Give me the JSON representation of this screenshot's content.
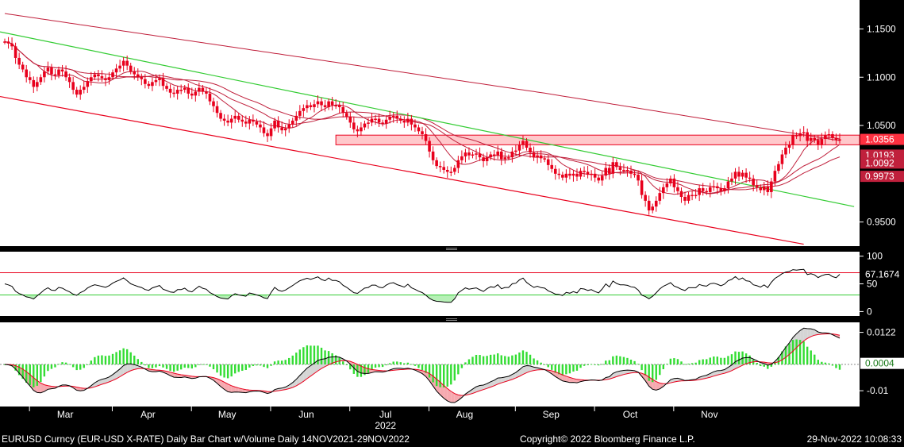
{
  "chart_data": {
    "type": "candlestick",
    "symbol": "EURUSD Curncy (EUR-USD X-RATE)",
    "interval": "Daily",
    "colors": {
      "background": "#000000",
      "frame_bg": "#ffffff",
      "candle": "#e8001c",
      "trendline": "#33cc33",
      "channel": "#e8001c",
      "moving_averages": "#c0203c",
      "band": "#ff9aa0",
      "rsi_line": "#000000",
      "macd_line": "#000000",
      "signal_line": "#e8001c",
      "hist": "#33dd33",
      "axis_text": "#ffffff"
    },
    "price_panel": {
      "ylim": [
        0.925,
        1.18
      ],
      "ticks": [
        "1.1500",
        "1.1000",
        "1.0500",
        "0.9500"
      ],
      "tick_values": [
        1.15,
        1.1,
        1.05,
        0.95
      ],
      "last_price": "1.0356",
      "tags": [
        {
          "label": "1.0356",
          "value": 1.0356,
          "style": "last"
        },
        {
          "label": "1.0193",
          "value": 1.0193,
          "style": "ma"
        },
        {
          "label": "1.0092",
          "value": 1.0092,
          "style": "ma"
        },
        {
          "label": "0.9973",
          "value": 0.9973,
          "style": "ma"
        }
      ],
      "resistance_band": [
        1.03,
        1.04
      ],
      "closes": [
        1.137,
        1.135,
        1.132,
        1.12,
        1.113,
        1.108,
        1.1,
        1.097,
        1.09,
        1.095,
        1.1,
        1.106,
        1.11,
        1.103,
        1.102,
        1.108,
        1.106,
        1.1,
        1.095,
        1.087,
        1.082,
        1.087,
        1.09,
        1.096,
        1.1,
        1.103,
        1.101,
        1.099,
        1.097,
        1.1,
        1.105,
        1.109,
        1.112,
        1.117,
        1.112,
        1.106,
        1.103,
        1.1,
        1.098,
        1.093,
        1.091,
        1.095,
        1.097,
        1.099,
        1.091,
        1.088,
        1.084,
        1.083,
        1.087,
        1.087,
        1.089,
        1.083,
        1.081,
        1.085,
        1.089,
        1.085,
        1.083,
        1.075,
        1.07,
        1.063,
        1.057,
        1.055,
        1.053,
        1.057,
        1.06,
        1.056,
        1.054,
        1.052,
        1.056,
        1.054,
        1.051,
        1.048,
        1.042,
        1.039,
        1.047,
        1.055,
        1.048,
        1.045,
        1.047,
        1.051,
        1.055,
        1.06,
        1.065,
        1.068,
        1.071,
        1.069,
        1.072,
        1.075,
        1.071,
        1.069,
        1.075,
        1.071,
        1.071,
        1.069,
        1.063,
        1.059,
        1.053,
        1.046,
        1.044,
        1.048,
        1.052,
        1.053,
        1.057,
        1.057,
        1.053,
        1.052,
        1.056,
        1.059,
        1.06,
        1.057,
        1.055,
        1.053,
        1.057,
        1.051,
        1.048,
        1.044,
        1.041,
        1.034,
        1.023,
        1.014,
        1.008,
        1.007,
        1.004,
        1.002,
        1.002,
        1.006,
        1.014,
        1.018,
        1.022,
        1.019,
        1.02,
        1.021,
        1.017,
        1.013,
        1.017,
        1.02,
        1.019,
        1.023,
        1.015,
        1.017,
        1.017,
        1.023,
        1.024,
        1.03,
        1.034,
        1.027,
        1.022,
        1.017,
        1.019,
        1.016,
        1.015,
        1.009,
        1.005,
        1.0,
        0.999,
        0.996,
        1.0,
        0.998,
        1.0,
        0.997,
        1.003,
        1.002,
        0.999,
        1.0,
        0.996,
        0.993,
        0.998,
        1.006,
        1.0,
        1.012,
        1.007,
        1.004,
        1.004,
        1.003,
        1.0,
        0.999,
        0.993,
        0.978,
        0.972,
        0.962,
        0.966,
        0.972,
        0.98,
        0.986,
        0.99,
        0.995,
        0.986,
        0.982,
        0.976,
        0.972,
        0.978,
        0.978,
        0.978,
        0.985,
        0.982,
        0.981,
        0.986,
        0.987,
        0.985,
        0.982,
        0.985,
        0.992,
        0.995,
        1.002,
        0.997,
        1.001,
        0.996,
        0.995,
        0.988,
        0.986,
        0.983,
        0.987,
        0.981,
        0.992,
        1.003,
        1.01,
        1.02,
        1.027,
        1.03,
        1.04,
        1.039,
        1.042,
        1.043,
        1.034,
        1.037,
        1.035,
        1.03,
        1.036,
        1.04,
        1.041,
        1.037,
        1.035,
        1.0356
      ]
    },
    "rsi_panel": {
      "ylim": [
        -8,
        108
      ],
      "ticks": [
        "100",
        "50",
        "0"
      ],
      "tick_values": [
        100,
        50,
        0
      ],
      "levels": [
        70,
        30
      ],
      "last_value": "67.1674",
      "last": 67.1674
    },
    "macd_panel": {
      "ylim": [
        -0.016,
        0.016
      ],
      "ticks": [
        "0.0122",
        "-0.01"
      ],
      "tick_values": [
        0.0122,
        -0.01
      ],
      "last_macd": "0.0122",
      "last_hist": "0.0004",
      "last_hist_value": 0.0004
    },
    "x_axis": {
      "months": [
        "Mar",
        "Apr",
        "May",
        "Jun",
        "Jul",
        "Aug",
        "Sep",
        "Oct",
        "Nov"
      ],
      "month_index": [
        19,
        42,
        64,
        86,
        108,
        130,
        154,
        176,
        198
      ],
      "year": "2022",
      "year_index": 108
    }
  },
  "footer": {
    "left": "EURUSD Curncy (EUR-USD X-RATE) Daily Bar Chart w/Volume  Daily 14NOV2021-29NOV2022",
    "center": "Copyright© 2022 Bloomberg Finance L.P.",
    "right": "29-Nov-2022 10:08:33"
  }
}
